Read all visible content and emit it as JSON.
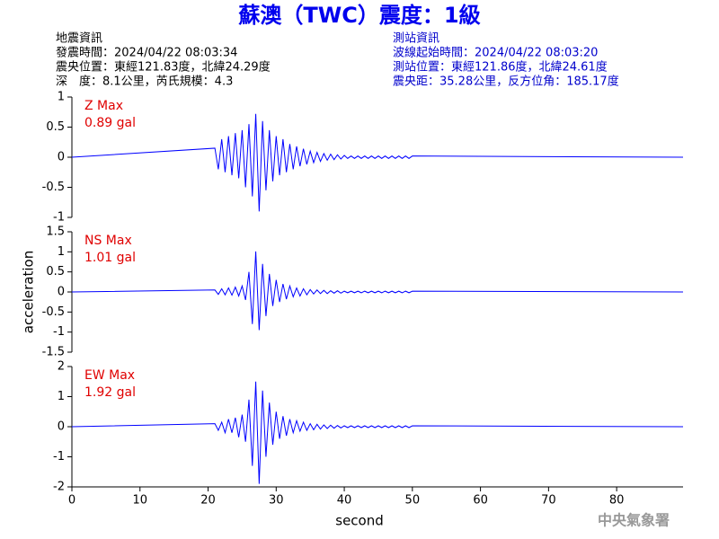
{
  "header": {
    "title": "蘇澳（TWC）震度：1級",
    "left": [
      "地震資訊",
      "發震時間：2024/04/22 08:03:34",
      "震央位置：東經121.83度，北緯24.29度",
      "深　度：8.1公里，芮氏規模：4.3"
    ],
    "right": [
      "測站資訊",
      "波線起始時間：2024/04/22 08:03:20",
      "測站位置：東經121.86度，北緯24.61度",
      "震央距：35.28公里，反方位角：185.17度"
    ]
  },
  "footer": "中央氣象署",
  "chart_data": [
    {
      "type": "line",
      "annotation": [
        "Z Max",
        "0.89 gal"
      ],
      "ylim": [
        -1,
        1
      ],
      "yticks": [
        1,
        0.5,
        0,
        -0.5,
        -1
      ],
      "xlim": [
        0,
        89.75
      ],
      "x": [
        0,
        21,
        21.5,
        22,
        22.5,
        23,
        23.5,
        24,
        24.5,
        25,
        25.5,
        26,
        26.5,
        27,
        27.5,
        28,
        28.5,
        29,
        29.5,
        30,
        30.5,
        31,
        31.5,
        32,
        32.5,
        33,
        33.5,
        34,
        34.5,
        35,
        35.5,
        36,
        36.5,
        37,
        37.5,
        38,
        38.5,
        39,
        39.5,
        40,
        40.5,
        41,
        41.5,
        42,
        42.5,
        43,
        43.5,
        44,
        44.5,
        45,
        45.5,
        46,
        46.5,
        47,
        47.5,
        48,
        48.5,
        49,
        49.5,
        50,
        89.75
      ],
      "series": [
        {
          "color": "#0000ff",
          "values": [
            0,
            0.15,
            -0.2,
            0.3,
            -0.25,
            0.35,
            -0.3,
            0.4,
            -0.35,
            0.45,
            -0.5,
            0.55,
            -0.65,
            0.72,
            -0.9,
            0.6,
            -0.55,
            0.45,
            -0.4,
            0.35,
            -0.3,
            0.3,
            -0.25,
            0.22,
            -0.2,
            0.18,
            -0.15,
            0.14,
            -0.12,
            0.1,
            -0.09,
            0.08,
            -0.07,
            0.06,
            -0.05,
            0.05,
            -0.04,
            0.04,
            -0.03,
            0.03,
            -0.02,
            0.02,
            -0.02,
            0.02,
            -0.02,
            0.02,
            -0.02,
            0.02,
            -0.02,
            0.02,
            -0.02,
            0.02,
            -0.02,
            0.02,
            -0.02,
            0.02,
            -0.02,
            0.02,
            -0.02,
            0.02,
            0
          ]
        }
      ]
    },
    {
      "type": "line",
      "annotation": [
        "NS Max",
        "1.01 gal"
      ],
      "ylabel": "acceleration",
      "ylim": [
        -1.5,
        1.5
      ],
      "yticks": [
        1.5,
        1,
        0.5,
        0,
        -0.5,
        -1,
        -1.5
      ],
      "xlim": [
        0,
        89.75
      ],
      "x": [
        0,
        21,
        21.5,
        22,
        22.5,
        23,
        23.5,
        24,
        24.5,
        25,
        25.5,
        26,
        26.5,
        27,
        27.5,
        28,
        28.5,
        29,
        29.5,
        30,
        30.5,
        31,
        31.5,
        32,
        32.5,
        33,
        33.5,
        34,
        34.5,
        35,
        35.5,
        36,
        36.5,
        37,
        37.5,
        38,
        38.5,
        39,
        39.5,
        40,
        40.5,
        41,
        41.5,
        42,
        42.5,
        43,
        43.5,
        44,
        44.5,
        45,
        45.5,
        46,
        46.5,
        47,
        47.5,
        48,
        48.5,
        49,
        49.5,
        50,
        89.75
      ],
      "series": [
        {
          "color": "#0000ff",
          "values": [
            0,
            0.05,
            -0.06,
            0.08,
            -0.07,
            0.1,
            -0.08,
            0.12,
            -0.1,
            0.15,
            -0.2,
            0.5,
            -0.8,
            1.01,
            -0.95,
            0.7,
            -0.6,
            0.45,
            -0.35,
            0.3,
            -0.25,
            0.2,
            -0.18,
            0.15,
            -0.12,
            0.1,
            -0.1,
            0.08,
            -0.07,
            0.06,
            -0.05,
            0.05,
            -0.04,
            0.04,
            -0.04,
            0.03,
            -0.03,
            0.03,
            -0.03,
            0.02,
            -0.02,
            0.02,
            -0.02,
            0.02,
            -0.02,
            0.02,
            -0.02,
            0.02,
            -0.02,
            0.02,
            -0.02,
            0.02,
            -0.02,
            0.02,
            -0.02,
            0.02,
            -0.02,
            0.02,
            -0.02,
            0.02,
            0
          ]
        }
      ]
    },
    {
      "type": "line",
      "annotation": [
        "EW Max",
        "1.92 gal"
      ],
      "xlabel": "second",
      "ylim": [
        -2,
        2
      ],
      "yticks": [
        2,
        1,
        0,
        -1,
        -2
      ],
      "xlim": [
        0,
        89.75
      ],
      "xticks": [
        0,
        10,
        20,
        30,
        40,
        50,
        60,
        70,
        80
      ],
      "x": [
        0,
        21,
        21.5,
        22,
        22.5,
        23,
        23.5,
        24,
        24.5,
        25,
        25.5,
        26,
        26.5,
        27,
        27.5,
        28,
        28.5,
        29,
        29.5,
        30,
        30.5,
        31,
        31.5,
        32,
        32.5,
        33,
        33.5,
        34,
        34.5,
        35,
        35.5,
        36,
        36.5,
        37,
        37.5,
        38,
        38.5,
        39,
        39.5,
        40,
        40.5,
        41,
        41.5,
        42,
        42.5,
        43,
        43.5,
        44,
        44.5,
        45,
        45.5,
        46,
        46.5,
        47,
        47.5,
        48,
        48.5,
        49,
        49.5,
        50,
        89.75
      ],
      "series": [
        {
          "color": "#0000ff",
          "values": [
            0,
            0.1,
            -0.12,
            0.15,
            -0.2,
            0.25,
            -0.2,
            0.3,
            -0.35,
            0.4,
            -0.5,
            0.9,
            -1.3,
            1.5,
            -1.9,
            1.2,
            -1.0,
            0.8,
            -0.6,
            0.5,
            -0.4,
            0.35,
            -0.3,
            0.25,
            -0.2,
            0.2,
            -0.15,
            0.15,
            -0.12,
            0.1,
            -0.1,
            0.08,
            -0.08,
            0.06,
            -0.06,
            0.05,
            -0.05,
            0.04,
            -0.04,
            0.03,
            -0.03,
            0.03,
            -0.03,
            0.03,
            -0.03,
            0.03,
            -0.03,
            0.03,
            -0.03,
            0.03,
            -0.03,
            0.03,
            -0.03,
            0.03,
            -0.03,
            0.03,
            -0.03,
            0.03,
            -0.03,
            0.03,
            0
          ]
        }
      ]
    }
  ]
}
